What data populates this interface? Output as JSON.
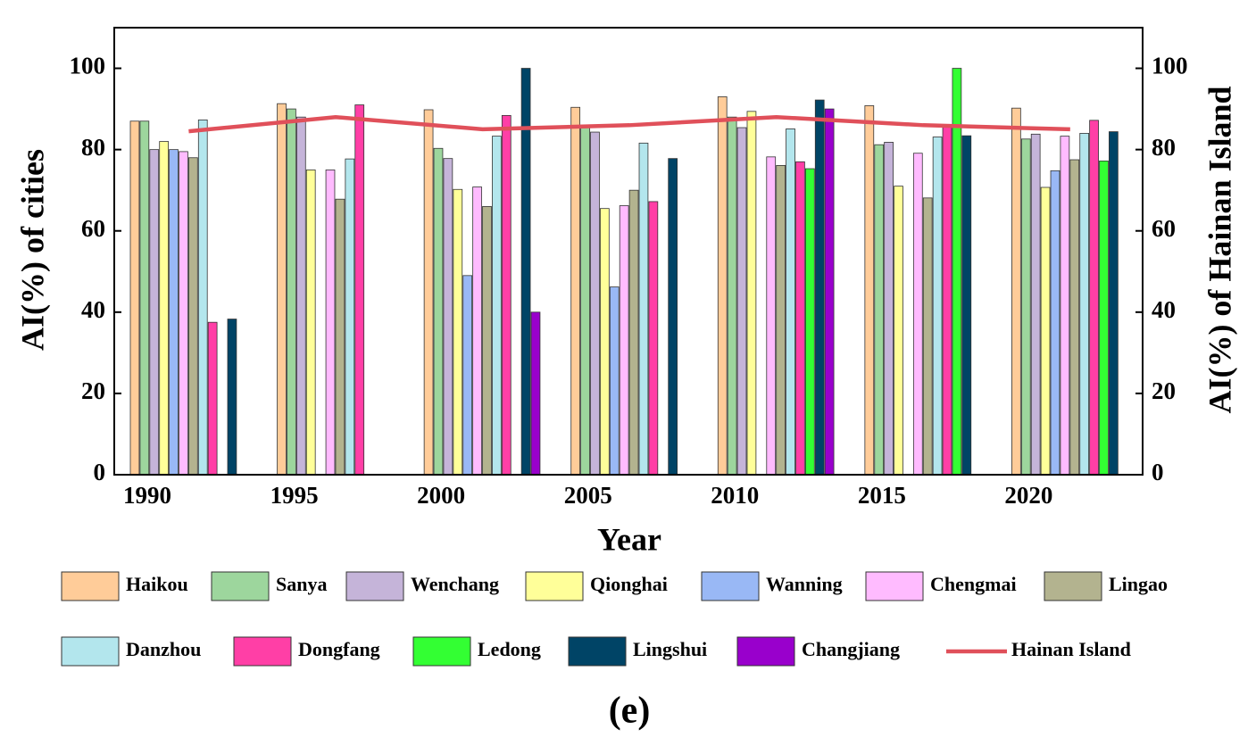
{
  "chart_data": {
    "type": "bar",
    "x_label": "Year",
    "y_label": "AI(%) of cities",
    "y2_label": "AI(%) of Hainan Island",
    "caption": "(e)",
    "categories": [
      "1990",
      "1995",
      "2000",
      "2005",
      "2010",
      "2015",
      "2020"
    ],
    "ylim": [
      0,
      110
    ],
    "yticks": [
      0,
      20,
      40,
      60,
      80,
      100
    ],
    "y2lim": [
      0,
      110
    ],
    "y2ticks": [
      0,
      20,
      40,
      60,
      80,
      100
    ],
    "series": [
      {
        "name": "Haikou",
        "color": "#FFCC99",
        "values": [
          87,
          91.3,
          89.8,
          90.4,
          93,
          90.8,
          90.2
        ]
      },
      {
        "name": "Sanya",
        "color": "#9DD69D",
        "values": [
          87,
          90,
          80.3,
          86,
          88,
          81.2,
          82.6
        ]
      },
      {
        "name": "Wenchang",
        "color": "#C5B4D9",
        "values": [
          80,
          88,
          77.8,
          84.3,
          85.4,
          81.8,
          83.8
        ]
      },
      {
        "name": "Qionghai",
        "color": "#FFFF99",
        "values": [
          82,
          75,
          70.2,
          65.5,
          89.4,
          71,
          70.7
        ]
      },
      {
        "name": "Wanning",
        "color": "#99B8F5",
        "values": [
          80,
          null,
          49,
          46.2,
          null,
          null,
          74.8
        ]
      },
      {
        "name": "Chengmai",
        "color": "#FFBBFF",
        "values": [
          79.5,
          75,
          70.8,
          66.2,
          78.2,
          79.1,
          83.3
        ]
      },
      {
        "name": "Lingao",
        "color": "#B3B38F",
        "values": [
          78,
          67.8,
          66,
          70,
          76.1,
          68.1,
          77.5
        ]
      },
      {
        "name": "Danzhou",
        "color": "#B3E6ED",
        "values": [
          87.3,
          77.7,
          83.3,
          81.6,
          85.1,
          83.1,
          84
        ]
      },
      {
        "name": "Dongfang",
        "color": "#FF3FA6",
        "values": [
          37.5,
          91,
          88.4,
          67.2,
          77,
          86,
          87.2
        ]
      },
      {
        "name": "Ledong",
        "color": "#33FF33",
        "values": [
          null,
          null,
          null,
          null,
          75.3,
          100,
          77.2
        ]
      },
      {
        "name": "Lingshui",
        "color": "#004466",
        "values": [
          38.3,
          null,
          100,
          77.8,
          92.2,
          83.4,
          84.4
        ]
      },
      {
        "name": "Changjiang",
        "color": "#9900CC",
        "values": [
          null,
          null,
          40,
          null,
          90,
          null,
          null
        ]
      },
      {
        "name": "Hainan Island",
        "color": "#E0505A",
        "type": "line",
        "axis": "y2",
        "values": [
          84.5,
          88,
          85,
          86,
          88,
          86,
          85
        ]
      }
    ]
  }
}
